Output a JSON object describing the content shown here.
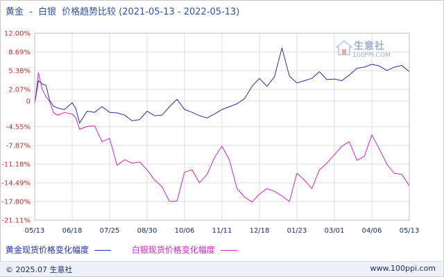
{
  "title": {
    "metal1": "黄金",
    "sep": "-",
    "metal2": "白银",
    "suffix": "价格趋势比较",
    "range": "(2021-05-13 - 2022-05-13)"
  },
  "legend": {
    "gold": "黄金现货价格变化幅度",
    "silver": "白银现货价格变化幅度"
  },
  "footer": {
    "copyright": "© 2025.07 生意社",
    "site": "www.100ppi.com"
  },
  "watermark": {
    "cn": "生意社",
    "en": "100PPI.COM"
  },
  "colors": {
    "gold": "#1f2fa6",
    "silver": "#d81fc8",
    "ytick": "#cc2b2b",
    "xtick": "#1a2a6c",
    "grid": "#dddddd"
  },
  "chart_data": {
    "type": "line",
    "title": "黄金 - 白银 价格趋势比较(2021-05-13 - 2022-05-13)",
    "ylim": [
      -21.11,
      12.0
    ],
    "y_ticks": [
      "12.00%",
      "8.69%",
      "5.38%",
      "2.07%",
      "0",
      "-4.55%",
      "-7.87%",
      "-11.18%",
      "-14.49%",
      "-17.80%",
      "-21.11%"
    ],
    "y_tick_values": [
      12.0,
      8.69,
      5.38,
      2.07,
      0,
      -4.55,
      -7.87,
      -11.18,
      -14.49,
      -17.8,
      -21.11
    ],
    "x_ticks": [
      "05/13",
      "06/18",
      "07/25",
      "08/30",
      "10/06",
      "11/11",
      "12/18",
      "01/23",
      "03/01",
      "04/06",
      "05/13"
    ],
    "grid": true,
    "legend_position": "bottom",
    "series": [
      {
        "name": "黄金现货价格变化幅度",
        "color": "#1f2fa6",
        "x": [
          0,
          1,
          2,
          3,
          4,
          5,
          6,
          7,
          8,
          9,
          10,
          11,
          12,
          14,
          16,
          18,
          20,
          22,
          24,
          26,
          28,
          30,
          32,
          34,
          36,
          38,
          40,
          42,
          44,
          46,
          48,
          50,
          52,
          54,
          56,
          58,
          60,
          62,
          64,
          66,
          68,
          70,
          72,
          74,
          76,
          78,
          80,
          82,
          84,
          86,
          88,
          90,
          92,
          94,
          96,
          98,
          100
        ],
        "y": [
          -0.5,
          3.6,
          3.0,
          2.8,
          0.1,
          -0.9,
          -1.2,
          -1.4,
          -1.5,
          -0.9,
          -0.3,
          -1.4,
          -3.9,
          -1.8,
          -2.0,
          -1.0,
          -2.0,
          -2.1,
          -2.5,
          -3.5,
          -3.3,
          -1.8,
          -2.6,
          -2.5,
          -1.0,
          0.3,
          -1.5,
          -2.0,
          -2.6,
          -3.0,
          -2.3,
          -1.5,
          -1.0,
          -0.5,
          0.4,
          2.6,
          4.0,
          2.6,
          4.3,
          9.4,
          4.4,
          3.2,
          3.6,
          4.0,
          5.2,
          3.8,
          3.9,
          3.6,
          4.6,
          5.8,
          6.0,
          6.5,
          6.2,
          5.4,
          6.0,
          6.3,
          5.2
        ]
      },
      {
        "name": "白银现货价格变化幅度",
        "color": "#d81fc8",
        "x": [
          0,
          1,
          2,
          3,
          4,
          5,
          6,
          7,
          8,
          9,
          10,
          11,
          12,
          14,
          16,
          18,
          20,
          22,
          24,
          26,
          28,
          30,
          32,
          34,
          36,
          38,
          40,
          42,
          44,
          46,
          48,
          50,
          52,
          54,
          56,
          58,
          60,
          62,
          64,
          66,
          68,
          70,
          72,
          74,
          76,
          78,
          80,
          82,
          84,
          86,
          88,
          90,
          92,
          94,
          96,
          98,
          100
        ],
        "y": [
          -0.5,
          5.0,
          2.1,
          0.8,
          -0.1,
          -2.0,
          -2.5,
          -2.3,
          -2.0,
          -2.2,
          -2.3,
          -3.0,
          -5.0,
          -4.5,
          -4.4,
          -7.2,
          -6.6,
          -11.4,
          -10.4,
          -11.0,
          -10.8,
          -12.2,
          -14.0,
          -15.2,
          -17.8,
          -17.7,
          -12.6,
          -12.2,
          -14.5,
          -13.0,
          -10.0,
          -8.0,
          -10.5,
          -15.5,
          -17.0,
          -17.9,
          -16.5,
          -15.5,
          -16.0,
          -16.8,
          -17.8,
          -12.8,
          -14.0,
          -15.5,
          -12.2,
          -11.0,
          -9.5,
          -8.0,
          -7.2,
          -10.5,
          -9.8,
          -6.0,
          -8.5,
          -11.2,
          -12.8,
          -13.0,
          -15.0
        ]
      }
    ]
  }
}
